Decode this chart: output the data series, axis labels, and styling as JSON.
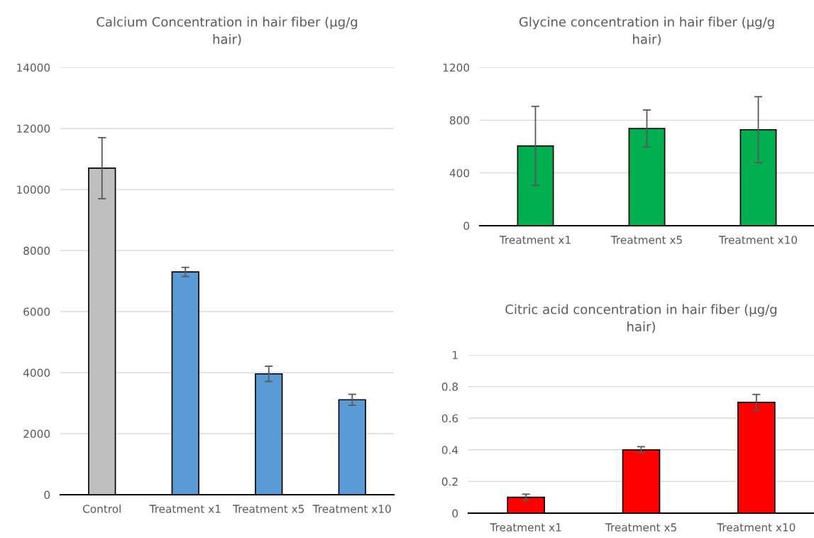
{
  "chart_data": [
    {
      "type": "bar",
      "title": "Calcium Concentration in hair fiber (µg/g\nhair)",
      "categories": [
        "Control",
        "Treatment x1",
        "Treatment x5",
        "Treatment x10"
      ],
      "values": [
        10700,
        7300,
        3960,
        3110
      ],
      "errors": [
        1000,
        150,
        250,
        180
      ],
      "colors": [
        "#bfbfbf",
        "#5b9bd5",
        "#5b9bd5",
        "#5b9bd5"
      ],
      "ylim": [
        0,
        14000
      ],
      "yticks": [
        0,
        2000,
        4000,
        6000,
        8000,
        10000,
        12000,
        14000
      ],
      "grid": "y",
      "legend": false
    },
    {
      "type": "bar",
      "title": "Glycine concentration in hair fiber (µg/g\nhair)",
      "categories": [
        "Treatment x1",
        "Treatment x5",
        "Treatment x10"
      ],
      "values": [
        605,
        737,
        728
      ],
      "errors": [
        300,
        140,
        250
      ],
      "colors": [
        "#00b050",
        "#00b050",
        "#00b050"
      ],
      "ylim": [
        0,
        1200
      ],
      "yticks": [
        0,
        400,
        800,
        1200
      ],
      "grid": "y",
      "legend": false
    },
    {
      "type": "bar",
      "title": "Citric acid concentration in hair fiber (µg/g\nhair)",
      "categories": [
        "Treatment x1",
        "Treatment x5",
        "Treatment x10"
      ],
      "values": [
        0.1,
        0.4,
        0.7
      ],
      "errors": [
        0.02,
        0.02,
        0.05
      ],
      "colors": [
        "#ff0000",
        "#ff0000",
        "#ff0000"
      ],
      "ylim": [
        0,
        1
      ],
      "yticks": [
        0,
        0.2,
        0.4,
        0.6,
        0.8,
        1
      ],
      "grid": "y",
      "legend": false
    }
  ]
}
